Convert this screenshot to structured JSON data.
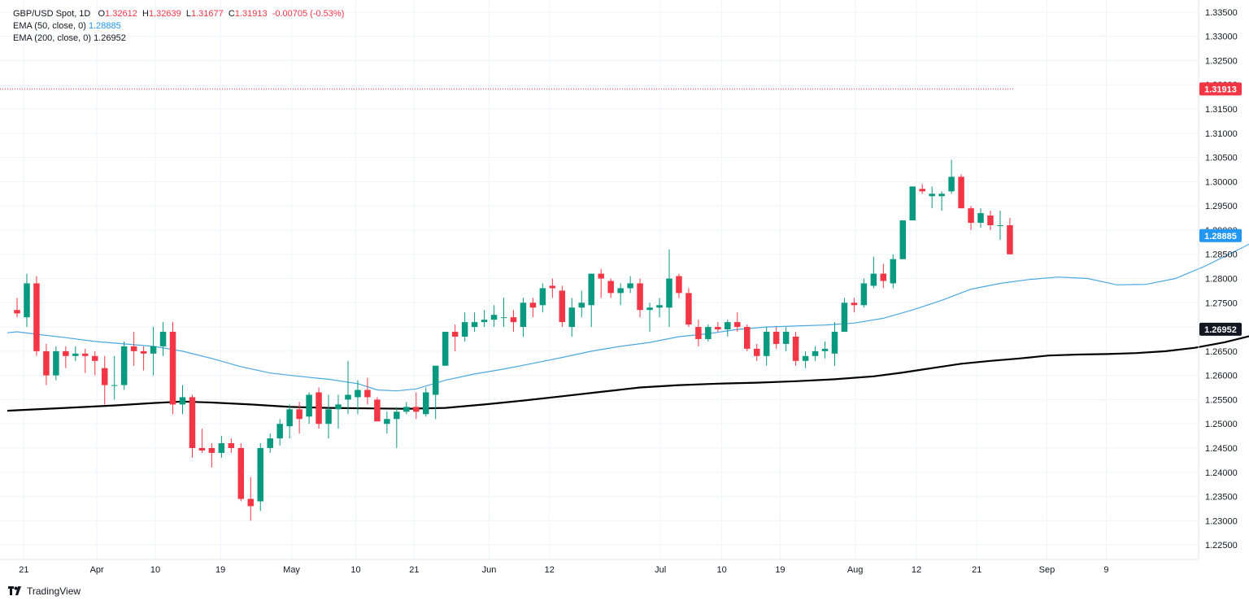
{
  "legend": {
    "symbol": "GBP/USD Spot, 1D",
    "o_label": "O",
    "o": "1.32612",
    "h_label": "H",
    "h": "1.32639",
    "l_label": "L",
    "l": "1.31677",
    "c_label": "C",
    "c": "1.31913",
    "change": "-0.00705 (-0.53%)",
    "ema50_label": "EMA (50, close, 0)",
    "ema50_value": "1.28885",
    "ema200_label": "EMA (200, close, 0)",
    "ema200_value": "1.26952"
  },
  "brand": {
    "name": "TradingView"
  },
  "colors": {
    "up": "#089981",
    "down": "#f23645",
    "ema50": "#4aa8e0",
    "ema200": "#000000",
    "grid": "#f0f3fa",
    "axis_text": "#131722"
  },
  "chart_data": {
    "type": "candlestick",
    "title": "GBP/USD Spot, 1D",
    "ylim": [
      1.222,
      1.3375
    ],
    "y_ticks": [
      "1.22500",
      "1.23000",
      "1.23500",
      "1.24000",
      "1.24500",
      "1.25000",
      "1.25500",
      "1.26000",
      "1.26500",
      "1.27000",
      "1.27500",
      "1.28000",
      "1.28500",
      "1.29000",
      "1.29500",
      "1.30000",
      "1.30500",
      "1.31000",
      "1.31500",
      "1.32000",
      "1.32500",
      "1.33000",
      "1.33500"
    ],
    "x_ticks": [
      {
        "label": "21",
        "i": 0.7
      },
      {
        "label": "Apr",
        "i": 8.2
      },
      {
        "label": "10",
        "i": 14.2
      },
      {
        "label": "19",
        "i": 20.9
      },
      {
        "label": "May",
        "i": 28.2
      },
      {
        "label": "10",
        "i": 34.8
      },
      {
        "label": "21",
        "i": 40.8
      },
      {
        "label": "Jun",
        "i": 48.5
      },
      {
        "label": "12",
        "i": 54.7
      },
      {
        "label": "Jul",
        "i": 66.1
      },
      {
        "label": "10",
        "i": 72.4
      },
      {
        "label": "19",
        "i": 78.4
      },
      {
        "label": "Aug",
        "i": 86.1
      },
      {
        "label": "12",
        "i": 92.4
      },
      {
        "label": "21",
        "i": 98.6
      },
      {
        "label": "Sep",
        "i": 105.8
      },
      {
        "label": "9",
        "i": 111.9
      }
    ],
    "price_labels": [
      {
        "value": "1.31913",
        "price": 1.31913,
        "color": "#f23645"
      },
      {
        "value": "1.28885",
        "price": 1.28885,
        "color": "#2196f3"
      },
      {
        "value": "1.26952",
        "price": 1.26952,
        "color": "#131722"
      }
    ],
    "candles": [
      [
        1.2735,
        1.276,
        1.272,
        1.2728
      ],
      [
        1.272,
        1.281,
        1.27,
        1.279
      ],
      [
        1.279,
        1.2805,
        1.264,
        1.265
      ],
      [
        1.265,
        1.2665,
        1.258,
        1.26
      ],
      [
        1.26,
        1.266,
        1.259,
        1.265
      ],
      [
        1.265,
        1.266,
        1.2615,
        1.264
      ],
      [
        1.264,
        1.266,
        1.263,
        1.2645
      ],
      [
        1.2645,
        1.2655,
        1.2605,
        1.264
      ],
      [
        1.264,
        1.265,
        1.26,
        1.263
      ],
      [
        1.2615,
        1.264,
        1.254,
        1.258
      ],
      [
        1.258,
        1.264,
        1.255,
        1.258
      ],
      [
        1.258,
        1.267,
        1.257,
        1.266
      ],
      [
        1.266,
        1.269,
        1.262,
        1.265
      ],
      [
        1.265,
        1.266,
        1.261,
        1.2645
      ],
      [
        1.2645,
        1.27,
        1.26,
        1.266
      ],
      [
        1.266,
        1.271,
        1.264,
        1.269
      ],
      [
        1.269,
        1.271,
        1.252,
        1.254
      ],
      [
        1.254,
        1.258,
        1.252,
        1.2555
      ],
      [
        1.2555,
        1.256,
        1.243,
        1.245
      ],
      [
        1.245,
        1.249,
        1.244,
        1.2445
      ],
      [
        1.245,
        1.246,
        1.241,
        1.244
      ],
      [
        1.244,
        1.2475,
        1.243,
        1.246
      ],
      [
        1.246,
        1.247,
        1.244,
        1.245
      ],
      [
        1.245,
        1.246,
        1.234,
        1.2345
      ],
      [
        1.2345,
        1.239,
        1.23,
        1.233
      ],
      [
        1.234,
        1.246,
        1.232,
        1.245
      ],
      [
        1.245,
        1.248,
        1.244,
        1.247
      ],
      [
        1.247,
        1.251,
        1.2455,
        1.25
      ],
      [
        1.2495,
        1.254,
        1.247,
        1.253
      ],
      [
        1.253,
        1.2545,
        1.248,
        1.251
      ],
      [
        1.2515,
        1.2565,
        1.25,
        1.256
      ],
      [
        1.2565,
        1.2575,
        1.249,
        1.25
      ],
      [
        1.25,
        1.256,
        1.247,
        1.253
      ],
      [
        1.253,
        1.256,
        1.249,
        1.254
      ],
      [
        1.255,
        1.263,
        1.252,
        1.256
      ],
      [
        1.2555,
        1.259,
        1.252,
        1.257
      ],
      [
        1.257,
        1.2595,
        1.254,
        1.2555
      ],
      [
        1.255,
        1.2555,
        1.251,
        1.2505
      ],
      [
        1.25,
        1.2525,
        1.248,
        1.251
      ],
      [
        1.251,
        1.2535,
        1.245,
        1.2525
      ],
      [
        1.2525,
        1.2545,
        1.252,
        1.2535
      ],
      [
        1.2535,
        1.2565,
        1.251,
        1.2525
      ],
      [
        1.252,
        1.2575,
        1.2515,
        1.2565
      ],
      [
        1.256,
        1.262,
        1.251,
        1.262
      ],
      [
        1.262,
        1.269,
        1.262,
        1.269
      ],
      [
        1.269,
        1.2705,
        1.265,
        1.268
      ],
      [
        1.268,
        1.273,
        1.267,
        1.271
      ],
      [
        1.27,
        1.273,
        1.269,
        1.271
      ],
      [
        1.271,
        1.2735,
        1.27,
        1.2715
      ],
      [
        1.2715,
        1.2745,
        1.27,
        1.2725
      ],
      [
        1.272,
        1.276,
        1.27,
        1.272
      ],
      [
        1.272,
        1.2735,
        1.269,
        1.271
      ],
      [
        1.27,
        1.276,
        1.268,
        1.275
      ],
      [
        1.275,
        1.276,
        1.272,
        1.274
      ],
      [
        1.2745,
        1.279,
        1.273,
        1.278
      ],
      [
        1.2785,
        1.28,
        1.276,
        1.278
      ],
      [
        1.2775,
        1.2785,
        1.27,
        1.271
      ],
      [
        1.27,
        1.276,
        1.268,
        1.274
      ],
      [
        1.274,
        1.2775,
        1.272,
        1.275
      ],
      [
        1.2745,
        1.281,
        1.27,
        1.281
      ],
      [
        1.281,
        1.282,
        1.276,
        1.28
      ],
      [
        1.2795,
        1.28,
        1.276,
        1.277
      ],
      [
        1.277,
        1.279,
        1.2745,
        1.278
      ],
      [
        1.278,
        1.2805,
        1.277,
        1.279
      ],
      [
        1.279,
        1.28,
        1.272,
        1.2735
      ],
      [
        1.2735,
        1.275,
        1.269,
        1.274
      ],
      [
        1.274,
        1.276,
        1.272,
        1.2745
      ],
      [
        1.274,
        1.286,
        1.27,
        1.28
      ],
      [
        1.2805,
        1.281,
        1.276,
        1.277
      ],
      [
        1.277,
        1.278,
        1.27,
        1.2705
      ],
      [
        1.27,
        1.2715,
        1.266,
        1.2675
      ],
      [
        1.2675,
        1.2705,
        1.267,
        1.27
      ],
      [
        1.27,
        1.271,
        1.269,
        1.2695
      ],
      [
        1.2695,
        1.2715,
        1.268,
        1.271
      ],
      [
        1.271,
        1.273,
        1.269,
        1.27
      ],
      [
        1.27,
        1.2705,
        1.265,
        1.2655
      ],
      [
        1.2655,
        1.2665,
        1.263,
        1.264
      ],
      [
        1.264,
        1.27,
        1.262,
        1.269
      ],
      [
        1.269,
        1.27,
        1.2655,
        1.2665
      ],
      [
        1.2665,
        1.27,
        1.265,
        1.269
      ],
      [
        1.268,
        1.269,
        1.262,
        1.263
      ],
      [
        1.263,
        1.265,
        1.2615,
        1.264
      ],
      [
        1.264,
        1.266,
        1.263,
        1.265
      ],
      [
        1.265,
        1.267,
        1.2635,
        1.2655
      ],
      [
        1.2645,
        1.271,
        1.262,
        1.269
      ],
      [
        1.269,
        1.276,
        1.269,
        1.275
      ],
      [
        1.275,
        1.276,
        1.273,
        1.2745
      ],
      [
        1.2745,
        1.28,
        1.274,
        1.279
      ],
      [
        1.2785,
        1.2845,
        1.278,
        1.281
      ],
      [
        1.281,
        1.283,
        1.278,
        1.2795
      ],
      [
        1.279,
        1.285,
        1.278,
        1.284
      ],
      [
        1.284,
        1.292,
        1.284,
        1.292
      ],
      [
        1.292,
        1.299,
        1.292,
        1.299
      ],
      [
        1.2985,
        1.2995,
        1.2975,
        1.298
      ],
      [
        1.297,
        1.299,
        1.2945,
        1.2975
      ],
      [
        1.297,
        1.298,
        1.294,
        1.2975
      ],
      [
        1.298,
        1.3045,
        1.2975,
        1.301
      ],
      [
        1.301,
        1.3015,
        1.2945,
        1.2945
      ],
      [
        1.2945,
        1.295,
        1.29,
        1.2915
      ],
      [
        1.2915,
        1.2945,
        1.2905,
        1.2935
      ],
      [
        1.293,
        1.294,
        1.29,
        1.291
      ],
      [
        1.291,
        1.294,
        1.288,
        1.291
      ],
      [
        1.291,
        1.2925,
        1.285,
        1.285
      ]
    ],
    "ema50": [
      [
        -1,
        1.2688
      ],
      [
        0,
        1.269
      ],
      [
        2,
        1.2685
      ],
      [
        5,
        1.2678
      ],
      [
        8,
        1.267
      ],
      [
        11,
        1.2665
      ],
      [
        14,
        1.266
      ],
      [
        17,
        1.265
      ],
      [
        20,
        1.2635
      ],
      [
        23,
        1.2618
      ],
      [
        26,
        1.2605
      ],
      [
        29,
        1.2598
      ],
      [
        32,
        1.2592
      ],
      [
        35,
        1.2583
      ],
      [
        37,
        1.257
      ],
      [
        39,
        1.2568
      ],
      [
        41,
        1.2572
      ],
      [
        44,
        1.259
      ],
      [
        47,
        1.2603
      ],
      [
        50,
        1.2613
      ],
      [
        53,
        1.2625
      ],
      [
        56,
        1.2637
      ],
      [
        59,
        1.265
      ],
      [
        62,
        1.266
      ],
      [
        65,
        1.2668
      ],
      [
        68,
        1.268
      ],
      [
        71,
        1.2686
      ],
      [
        74,
        1.2695
      ],
      [
        77,
        1.27
      ],
      [
        80,
        1.2702
      ],
      [
        83,
        1.2704
      ],
      [
        86,
        1.2708
      ],
      [
        89,
        1.2718
      ],
      [
        92,
        1.2735
      ],
      [
        95,
        1.2755
      ],
      [
        98,
        1.2778
      ],
      [
        101,
        1.279
      ],
      [
        104,
        1.2798
      ],
      [
        107,
        1.2803
      ],
      [
        110,
        1.28
      ],
      [
        113,
        1.2787
      ],
      [
        116,
        1.2788
      ],
      [
        119,
        1.28
      ],
      [
        122,
        1.2825
      ],
      [
        125,
        1.2855
      ],
      [
        127,
        1.2875
      ],
      [
        129,
        1.28885
      ]
    ],
    "ema200": [
      [
        -1,
        1.2527
      ],
      [
        0,
        1.2528
      ],
      [
        5,
        1.2533
      ],
      [
        10,
        1.2538
      ],
      [
        14,
        1.2543
      ],
      [
        17,
        1.2546
      ],
      [
        20,
        1.2544
      ],
      [
        24,
        1.254
      ],
      [
        28,
        1.2535
      ],
      [
        32,
        1.2533
      ],
      [
        36,
        1.2532
      ],
      [
        40,
        1.2531
      ],
      [
        44,
        1.2533
      ],
      [
        48,
        1.254
      ],
      [
        52,
        1.2548
      ],
      [
        56,
        1.2557
      ],
      [
        60,
        1.2566
      ],
      [
        64,
        1.2575
      ],
      [
        68,
        1.258
      ],
      [
        72,
        1.2583
      ],
      [
        76,
        1.2585
      ],
      [
        80,
        1.2588
      ],
      [
        84,
        1.2592
      ],
      [
        88,
        1.2598
      ],
      [
        91,
        1.2606
      ],
      [
        94,
        1.2615
      ],
      [
        97,
        1.2624
      ],
      [
        100,
        1.263
      ],
      [
        103,
        1.2635
      ],
      [
        106,
        1.2641
      ],
      [
        109,
        1.2643
      ],
      [
        112,
        1.2644
      ],
      [
        115,
        1.2646
      ],
      [
        118,
        1.265
      ],
      [
        121,
        1.2657
      ],
      [
        124,
        1.2668
      ],
      [
        127,
        1.2683
      ],
      [
        129,
        1.26952
      ]
    ]
  }
}
